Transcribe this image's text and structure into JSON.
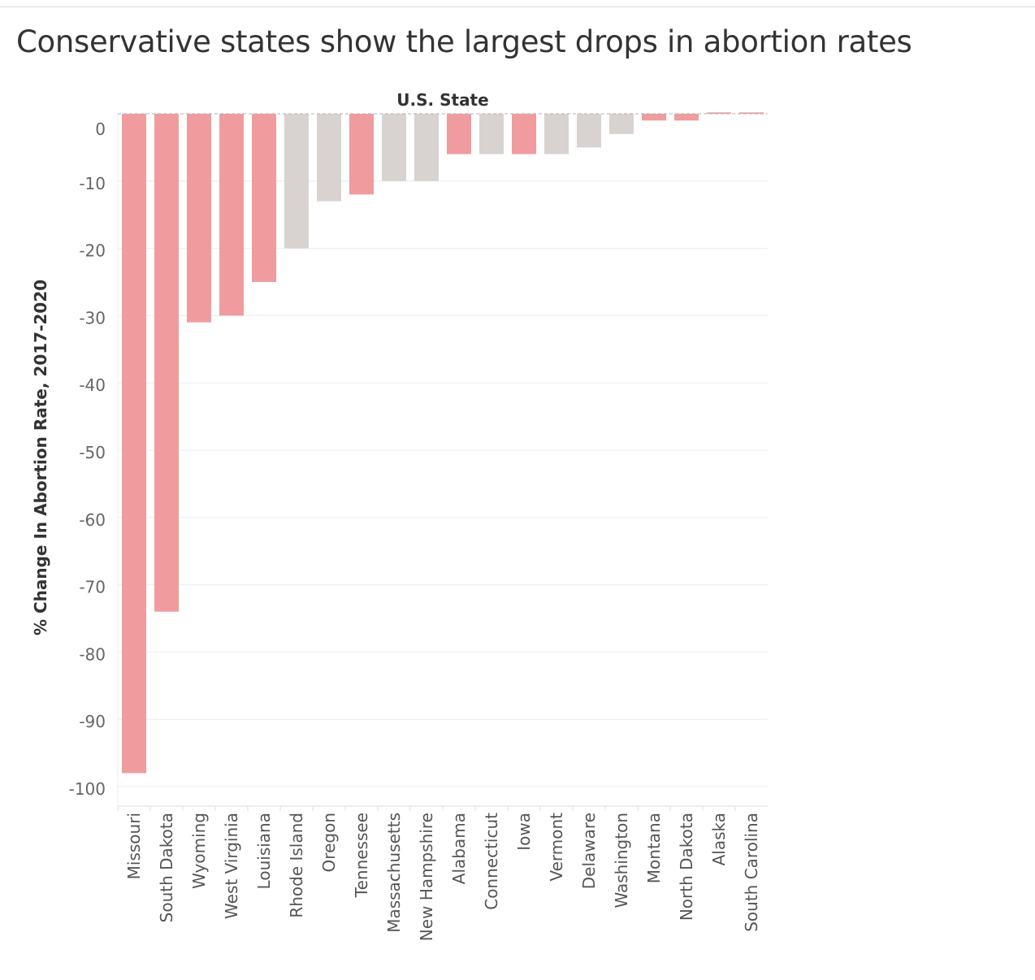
{
  "title": "Conservative states show the largest drops in abortion rates",
  "colors": {
    "highlight": "#f09c9e",
    "muted": "#d8d3d1",
    "grid": "#ececec",
    "zero": "#b0b0b0"
  },
  "chart_data": {
    "type": "bar",
    "xlabel": "U.S. State",
    "ylabel": "% Change In Abortion Rate, 2017-2020",
    "ylim": [
      -100,
      0
    ],
    "yticks": [
      "0",
      "-10",
      "-20",
      "-30",
      "-40",
      "-50",
      "-60",
      "-70",
      "-80",
      "-90",
      "-100"
    ],
    "grid": true,
    "categories": [
      "Missouri",
      "South Dakota",
      "Wyoming",
      "West Virginia",
      "Louisiana",
      "Rhode Island",
      "Oregon",
      "Tennessee",
      "Massachusetts",
      "New Hampshire",
      "Alabama",
      "Connecticut",
      "Iowa",
      "Vermont",
      "Delaware",
      "Washington",
      "Montana",
      "North Dakota",
      "Alaska",
      "South Carolina"
    ],
    "values": [
      -98,
      -74,
      -31,
      -30,
      -25,
      -20,
      -13,
      -12,
      -10,
      -10,
      -6,
      -6,
      -6,
      -6,
      -5,
      -3,
      -1,
      -1,
      0.2,
      0.2
    ],
    "highlight": [
      true,
      true,
      true,
      true,
      true,
      false,
      false,
      true,
      false,
      false,
      true,
      false,
      true,
      false,
      false,
      false,
      true,
      true,
      true,
      true
    ]
  }
}
